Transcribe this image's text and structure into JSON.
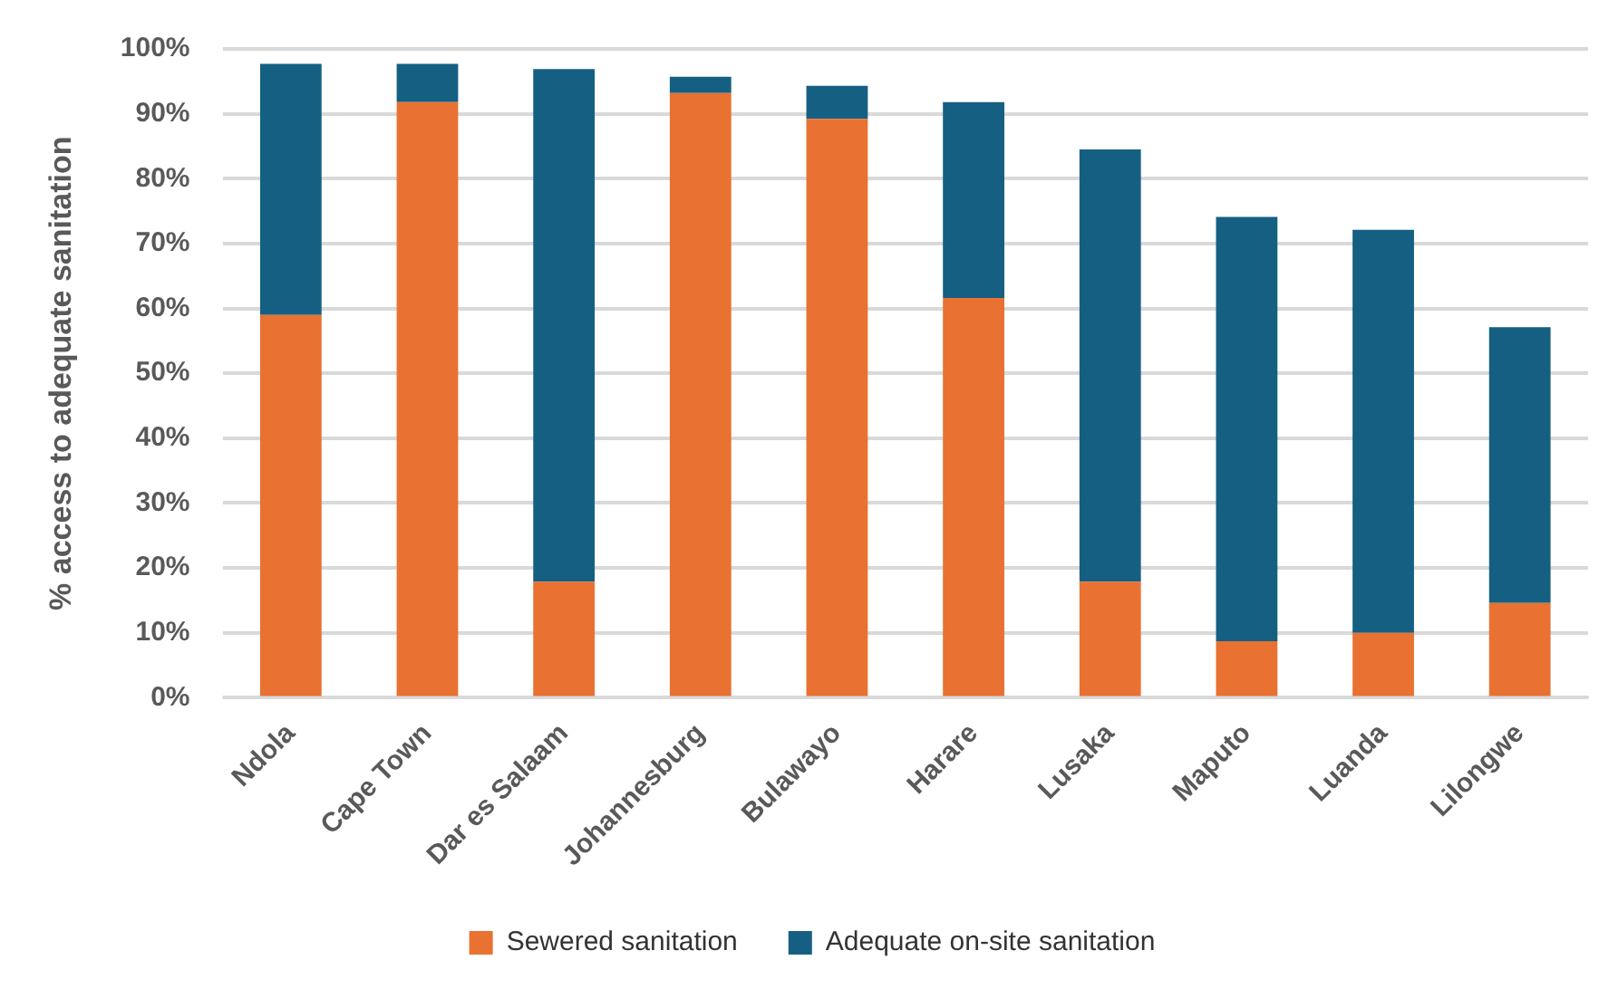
{
  "chart_data": {
    "type": "bar",
    "stacked": true,
    "ylabel": "% access to adequate sanitation",
    "categories": [
      "Ndola",
      "Cape Town",
      "Dar es Salaam",
      "Johannesburg",
      "Bulawayo",
      "Harare",
      "Lusaka",
      "Maputo",
      "Luanda",
      "Lilongwe"
    ],
    "series": [
      {
        "name": "Sewered sanitation",
        "color": "#e97132",
        "values": [
          59,
          91.8,
          17.9,
          93.2,
          89.2,
          61.6,
          17.9,
          8.7,
          10,
          14.6
        ]
      },
      {
        "name": "Adequate on-site sanitation",
        "color": "#156082",
        "values": [
          38.7,
          5.9,
          79,
          2.5,
          5.1,
          30.2,
          66.6,
          65.4,
          62.1,
          42.5
        ]
      }
    ],
    "ylim": [
      0,
      100
    ],
    "yticks": [
      {
        "value": 0,
        "label": "0%"
      },
      {
        "value": 10,
        "label": "10%"
      },
      {
        "value": 20,
        "label": "20%"
      },
      {
        "value": 30,
        "label": "30%"
      },
      {
        "value": 40,
        "label": "40%"
      },
      {
        "value": 50,
        "label": "50%"
      },
      {
        "value": 60,
        "label": "60%"
      },
      {
        "value": 70,
        "label": "70%"
      },
      {
        "value": 80,
        "label": "80%"
      },
      {
        "value": 90,
        "label": "90%"
      },
      {
        "value": 100,
        "label": "100%"
      }
    ],
    "grid": "y",
    "legend": "bottom"
  }
}
